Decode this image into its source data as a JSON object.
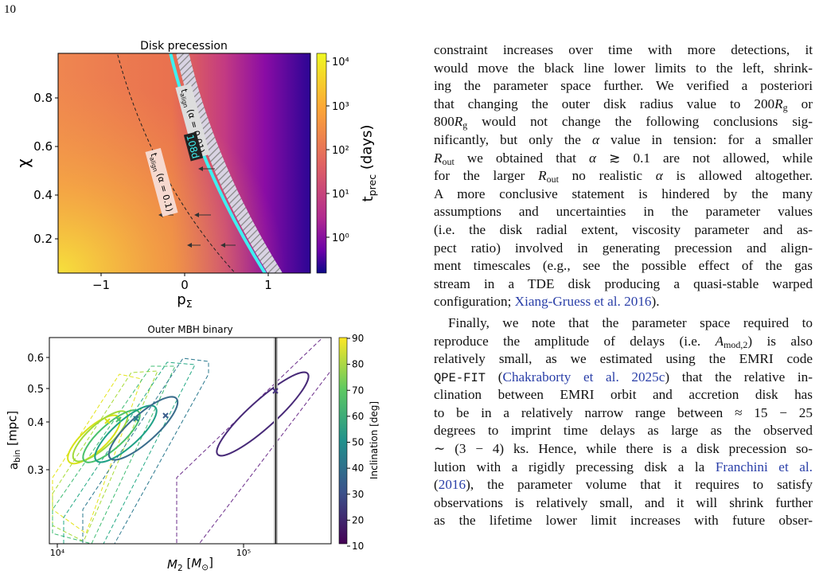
{
  "page_number": "10",
  "figure_top": {
    "title": "Disk precession",
    "xlabel": [
      "p",
      {
        "text": "Σ",
        "style": "sub"
      }
    ],
    "ylabel": [
      "χ"
    ],
    "colorbar_label": [
      "t",
      {
        "text": "prec",
        "style": "sub"
      },
      " (days)"
    ],
    "xticks": [
      "−1",
      "0",
      "1"
    ],
    "yticks": [
      "0.2",
      "0.4",
      "0.6",
      "0.8"
    ],
    "colorbar_ticks": [
      "10⁴",
      "10³",
      "10²",
      "10¹",
      "10⁰"
    ],
    "annotations": [
      [
        "t",
        {
          "text": "align",
          "style": "sub"
        },
        " (α = 0.1)"
      ],
      [
        "t",
        {
          "text": "align",
          "style": "sub"
        },
        " (α = 0.01)"
      ],
      [
        "108d"
      ]
    ]
  },
  "figure_bottom": {
    "title": "Outer MBH binary",
    "xlabel": [
      {
        "text": "M",
        "style": "math"
      },
      {
        "text": "2",
        "style": "sub"
      },
      " [",
      {
        "text": "M",
        "style": "math"
      },
      {
        "text": "⊙",
        "style": "sub"
      },
      "]"
    ],
    "ylabel": [
      "a",
      {
        "text": "bin",
        "style": "sub"
      },
      " [mpc]"
    ],
    "colorbar_label": [
      "Inclination [deg]"
    ],
    "xticks": [
      "10⁴",
      "10⁵"
    ],
    "yticks": [
      "0.3",
      "0.4",
      "0.5",
      "0.6"
    ],
    "colorbar_ticks": [
      "10",
      "20",
      "30",
      "40",
      "50",
      "60",
      "70",
      "80",
      "90"
    ]
  },
  "text_lines": [
    [
      "constraint increases over time with more detections, it"
    ],
    [
      "would move the black line lower limits to the left, shrink-"
    ],
    [
      "ing the parameter space further. We verified a posteriori"
    ],
    [
      "that changing the outer disk radius value to 200",
      {
        "text": "R",
        "style": "math"
      },
      {
        "text": "g",
        "style": "sub"
      },
      " or"
    ],
    [
      "800",
      {
        "text": "R",
        "style": "math"
      },
      {
        "text": "g",
        "style": "sub"
      },
      " would not change the following conclusions sig-"
    ],
    [
      "nificantly, but only the ",
      {
        "text": "α",
        "style": "math"
      },
      " value in tension: for a smaller"
    ],
    [
      {
        "text": "R",
        "style": "math"
      },
      {
        "text": "out",
        "style": "sub"
      },
      " we obtained that ",
      {
        "text": "α",
        "style": "math"
      },
      " ≳ 0.1 are not allowed, while"
    ],
    [
      "for the larger ",
      {
        "text": "R",
        "style": "math"
      },
      {
        "text": "out",
        "style": "sub"
      },
      " no realistic ",
      {
        "text": "α",
        "style": "math"
      },
      " is allowed altogether."
    ],
    [
      "A more conclusive statement is hindered by the many"
    ],
    [
      "assumptions and uncertainties in the parameter values"
    ],
    [
      "(i.e. the disk radial extent, viscosity parameter and as-"
    ],
    [
      "pect ratio) involved in generating precession and align-"
    ],
    [
      "ment timescales (e.g., see the possible effect of the gas"
    ],
    [
      "stream in a TDE disk producing a quasi-stable warped"
    ],
    [
      "configuration; ",
      {
        "text": "Xiang-Gruess et al. 2016",
        "style": "link"
      },
      ")."
    ],
    [
      "Finally, we note that the parameter space required to"
    ],
    [
      "reproduce the amplitude of delays (i.e. ",
      {
        "text": "A",
        "style": "math"
      },
      {
        "text": "mod,2",
        "style": "sub"
      },
      ") is also"
    ],
    [
      "relatively small, as we estimated using the EMRI code"
    ],
    [
      {
        "text": "QPE-FIT",
        "style": "code"
      },
      " (",
      {
        "text": "Chakraborty et al. 2025c",
        "style": "link"
      },
      ") that the relative in-"
    ],
    [
      "clination between EMRI orbit and accretion disk has"
    ],
    [
      "to be in a relatively narrow range between ≈ 15 − 25"
    ],
    [
      "degrees to imprint time delays as large as the observed"
    ],
    [
      "∼ (3 − 4) ks. Hence, while there is a disk precession so-"
    ],
    [
      "lution with a rigidly precessing disk a la ",
      {
        "text": "Franchini et al.",
        "style": "link"
      }
    ],
    [
      "(",
      {
        "text": "2016",
        "style": "link"
      },
      "), the parameter volume that it requires to satisfy"
    ],
    [
      "observations is relatively small, and it will shrink further"
    ],
    [
      "as the lifetime lower limit increases with future obser-"
    ]
  ]
}
